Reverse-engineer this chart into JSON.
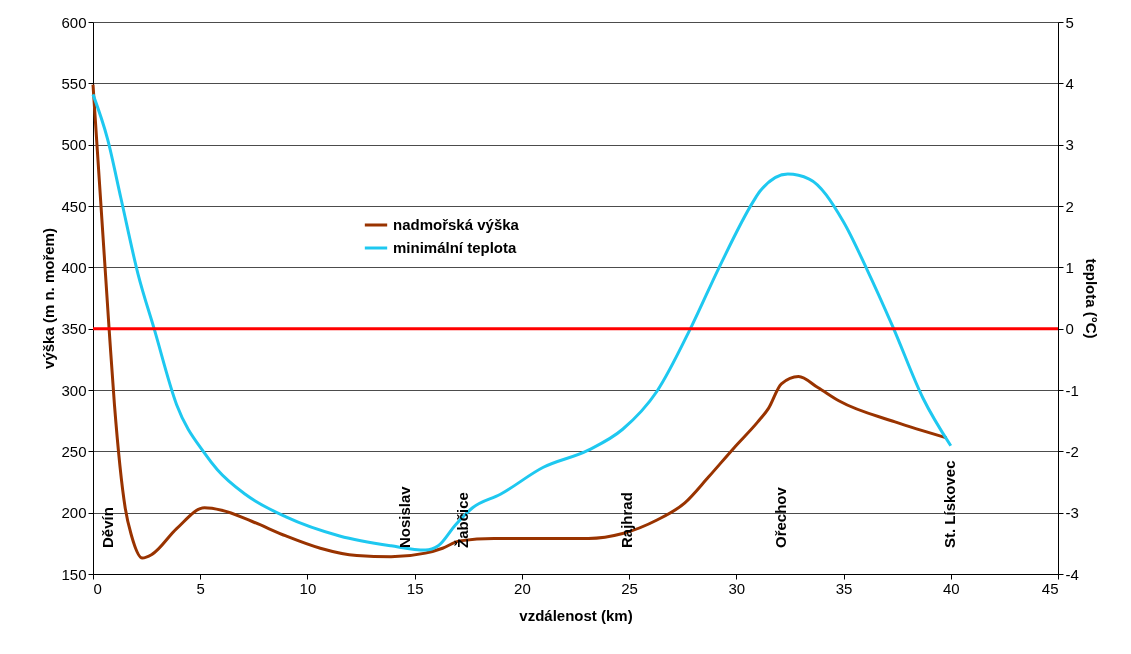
{
  "chart_data": {
    "type": "line",
    "xlabel": "vzdálenost (km)",
    "ylabel": "výška (m n. mořem)",
    "y2label": "teplota (°C)",
    "xlim": [
      0,
      45
    ],
    "xticks": [
      0,
      5,
      10,
      15,
      20,
      25,
      30,
      35,
      40,
      45
    ],
    "ylim": [
      150,
      600
    ],
    "yticks": [
      150,
      200,
      250,
      300,
      350,
      400,
      450,
      500,
      550,
      600
    ],
    "y2lim": [
      -4,
      5
    ],
    "y2ticks": [
      -4,
      -3,
      -2,
      -1,
      0,
      1,
      2,
      3,
      4,
      5
    ],
    "grid": "y",
    "legend": "top left",
    "marker": "none",
    "line_style": "solid",
    "series": [
      {
        "name": "nadmořská výška",
        "color": "#993300",
        "x": [
          0,
          0.75,
          1.0,
          1.5,
          1.8,
          2.3,
          2.75,
          3.9,
          5.2,
          6.0,
          7.4,
          9.0,
          10.6,
          12.3,
          13.9,
          15.5,
          16.3,
          17.1,
          18.7,
          23.1,
          24.7,
          26.3,
          27.6,
          28.7,
          29.9,
          31.0,
          31.5,
          32.1,
          32.9,
          33.8,
          34.8,
          37.4,
          39.8
        ],
        "values": [
          549,
          350,
          288,
          204,
          181,
          163,
          166,
          187,
          204,
          202,
          193,
          181,
          171,
          165,
          164,
          167,
          171,
          177,
          179,
          179,
          183,
          194,
          208,
          229,
          253,
          274,
          285,
          305,
          311,
          302,
          291,
          274,
          261
        ]
      },
      {
        "name": "minimální teplota",
        "color": "#1ec8f0",
        "axis": "y2",
        "x": [
          0,
          0.68,
          1.3,
          2.1,
          2.85,
          3.9,
          5.2,
          5.8,
          7.1,
          9.0,
          11.5,
          13.9,
          15.5,
          16.1,
          16.9,
          17.7,
          19.0,
          21.0,
          23.1,
          24.7,
          26.3,
          27.9,
          29.2,
          30.8,
          31.1,
          32.4,
          33.4,
          35.0,
          36.1,
          37.3,
          38.7,
          40.0
        ],
        "values": [
          3.82,
          3.09,
          2.13,
          0.89,
          0.0,
          -1.24,
          -2.03,
          -2.3,
          -2.7,
          -3.07,
          -3.38,
          -3.54,
          -3.61,
          -3.54,
          -3.2,
          -2.92,
          -2.7,
          -2.26,
          -1.98,
          -1.64,
          -1.02,
          0.03,
          1.0,
          2.08,
          2.24,
          2.52,
          2.44,
          1.74,
          0.96,
          0.03,
          -1.13,
          -1.91
        ]
      }
    ],
    "ref_lines": [
      {
        "axis": "y2",
        "value": 0,
        "color": "#ff0000"
      }
    ],
    "annotations": [
      "Děvín",
      "Nosislav",
      "Žabčice",
      "Rajhrad",
      "Ořechov",
      "St. Lískovec"
    ]
  }
}
